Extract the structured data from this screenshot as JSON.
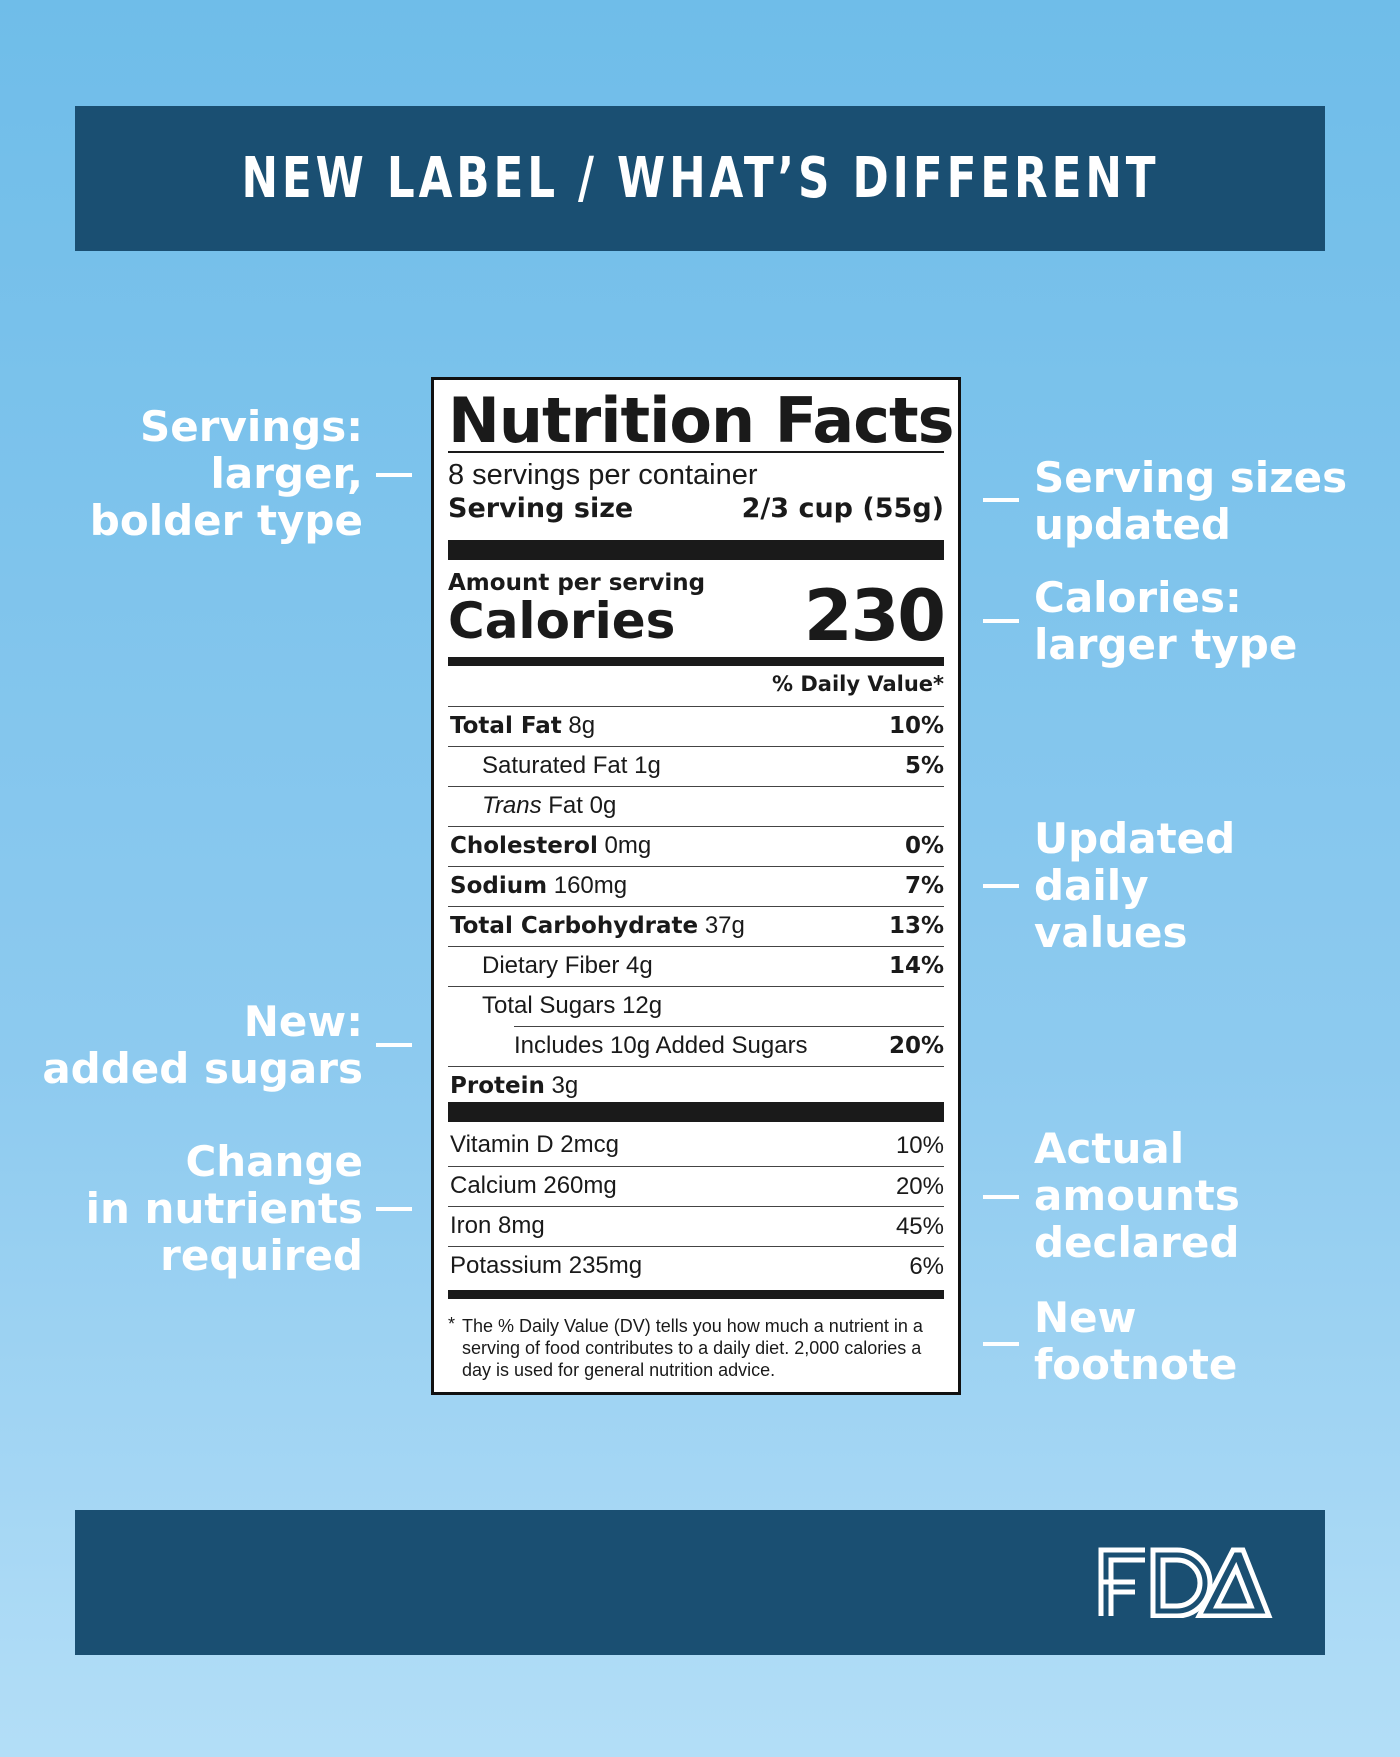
{
  "header": {
    "title": "NEW LABEL / WHAT’S DIFFERENT"
  },
  "footer": {
    "logo": "FDA"
  },
  "callouts": {
    "servings_type": [
      "Servings:",
      "larger,",
      "bolder type"
    ],
    "added_sugars": [
      "New:",
      "added sugars"
    ],
    "nutrients_required": [
      "Change",
      "in nutrients",
      "required"
    ],
    "serving_sizes": [
      "Serving sizes",
      "updated"
    ],
    "calories_type": [
      "Calories:",
      "larger type"
    ],
    "daily_values": [
      "Updated",
      "daily",
      "values"
    ],
    "actual_amounts": [
      "Actual",
      "amounts",
      "declared"
    ],
    "footnote": [
      "New",
      "footnote"
    ]
  },
  "label": {
    "title": "Nutrition Facts",
    "servings_per_container": "8 servings per container",
    "serving_size_label": "Serving size",
    "serving_size_value": "2/3 cup (55g)",
    "amount_per_serving": "Amount per serving",
    "calories_label": "Calories",
    "calories_value": "230",
    "daily_value_header": "% Daily Value*",
    "nutrients": [
      {
        "name": "Total Fat",
        "amount": "8g",
        "pct": "10%"
      },
      {
        "name": "Saturated Fat",
        "amount": "1g",
        "pct": "5%"
      },
      {
        "name_italic": "Trans",
        "name": "Fat",
        "amount": "0g",
        "pct": ""
      },
      {
        "name": "Cholesterol",
        "amount": "0mg",
        "pct": "0%"
      },
      {
        "name": "Sodium",
        "amount": "160mg",
        "pct": "7%"
      },
      {
        "name": "Total Carbohydrate",
        "amount": "37g",
        "pct": "13%"
      },
      {
        "name": "Dietary Fiber",
        "amount": "4g",
        "pct": "14%"
      },
      {
        "name": "Total Sugars",
        "amount": "12g",
        "pct": ""
      },
      {
        "name": "Includes 10g Added Sugars",
        "amount": "",
        "pct": "20%"
      },
      {
        "name": "Protein",
        "amount": "3g",
        "pct": ""
      }
    ],
    "vitamins": [
      {
        "name": "Vitamin D",
        "amount": "2mcg",
        "pct": "10%"
      },
      {
        "name": "Calcium",
        "amount": "260mg",
        "pct": "20%"
      },
      {
        "name": "Iron",
        "amount": "8mg",
        "pct": "45%"
      },
      {
        "name": "Potassium",
        "amount": "235mg",
        "pct": "6%"
      }
    ],
    "footnote_star": "*",
    "footnote": "The % Daily Value (DV) tells you how much a nutrient in a serving of food contributes to a daily diet. 2,000 calories a day is used for general nutrition advice."
  }
}
